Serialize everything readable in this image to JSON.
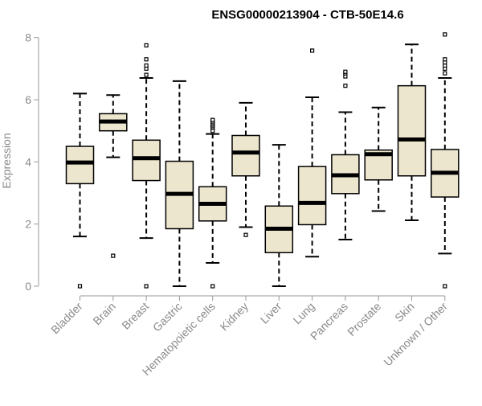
{
  "chart_data": {
    "type": "box",
    "title": "ENSG00000213904 - CTB-50E14.6",
    "ylabel": "Expression",
    "xlabel": "",
    "ylim": [
      0,
      8.2
    ],
    "yticks": [
      0,
      2,
      4,
      6,
      8
    ],
    "grid": false,
    "colors": {
      "box_fill": "#ede6cf",
      "stroke": "#000000",
      "axis": "#9a9a9a"
    },
    "categories": [
      "Bladder",
      "Brain",
      "Breast",
      "Gastric",
      "Hematopoietic cells",
      "Kidney",
      "Liver",
      "Lung",
      "Pancreas",
      "Prostate",
      "Skin",
      "Unknown / Other"
    ],
    "boxes": [
      {
        "category": "Bladder",
        "whisker_low": 1.6,
        "q1": 3.3,
        "median": 3.98,
        "q3": 4.5,
        "whisker_high": 6.2,
        "outliers": [
          0.0
        ]
      },
      {
        "category": "Brain",
        "whisker_low": 4.15,
        "q1": 5.0,
        "median": 5.3,
        "q3": 5.55,
        "whisker_high": 6.15,
        "outliers": [
          0.98
        ]
      },
      {
        "category": "Breast",
        "whisker_low": 1.55,
        "q1": 3.4,
        "median": 4.12,
        "q3": 4.7,
        "whisker_high": 6.7,
        "outliers": [
          0.0,
          6.8,
          7.0,
          7.1,
          7.3,
          7.75
        ]
      },
      {
        "category": "Gastric",
        "whisker_low": 0.0,
        "q1": 1.85,
        "median": 2.97,
        "q3": 4.02,
        "whisker_high": 6.6,
        "outliers": []
      },
      {
        "category": "Hematopoietic cells",
        "whisker_low": 0.75,
        "q1": 2.1,
        "median": 2.65,
        "q3": 3.2,
        "whisker_high": 4.9,
        "outliers": [
          0.0,
          5.0,
          5.1,
          5.15,
          5.2,
          5.25,
          5.3,
          5.35
        ]
      },
      {
        "category": "Kidney",
        "whisker_low": 1.9,
        "q1": 3.55,
        "median": 4.3,
        "q3": 4.85,
        "whisker_high": 5.9,
        "outliers": [
          1.65
        ]
      },
      {
        "category": "Liver",
        "whisker_low": 0.0,
        "q1": 1.08,
        "median": 1.85,
        "q3": 2.58,
        "whisker_high": 4.55,
        "outliers": []
      },
      {
        "category": "Lung",
        "whisker_low": 0.95,
        "q1": 1.98,
        "median": 2.68,
        "q3": 3.85,
        "whisker_high": 6.08,
        "outliers": [
          7.58
        ]
      },
      {
        "category": "Pancreas",
        "whisker_low": 1.5,
        "q1": 2.98,
        "median": 3.57,
        "q3": 4.23,
        "whisker_high": 5.6,
        "outliers": [
          6.45,
          6.75,
          6.85,
          6.9
        ]
      },
      {
        "category": "Prostate",
        "whisker_low": 2.42,
        "q1": 3.42,
        "median": 4.25,
        "q3": 4.38,
        "whisker_high": 5.75,
        "outliers": []
      },
      {
        "category": "Skin",
        "whisker_low": 2.12,
        "q1": 3.55,
        "median": 4.72,
        "q3": 6.45,
        "whisker_high": 7.78,
        "outliers": []
      },
      {
        "category": "Unknown / Other",
        "whisker_low": 1.05,
        "q1": 2.87,
        "median": 3.65,
        "q3": 4.4,
        "whisker_high": 6.7,
        "outliers": [
          0.0,
          6.85,
          7.0,
          7.1,
          7.2,
          7.3,
          8.1
        ]
      }
    ]
  }
}
